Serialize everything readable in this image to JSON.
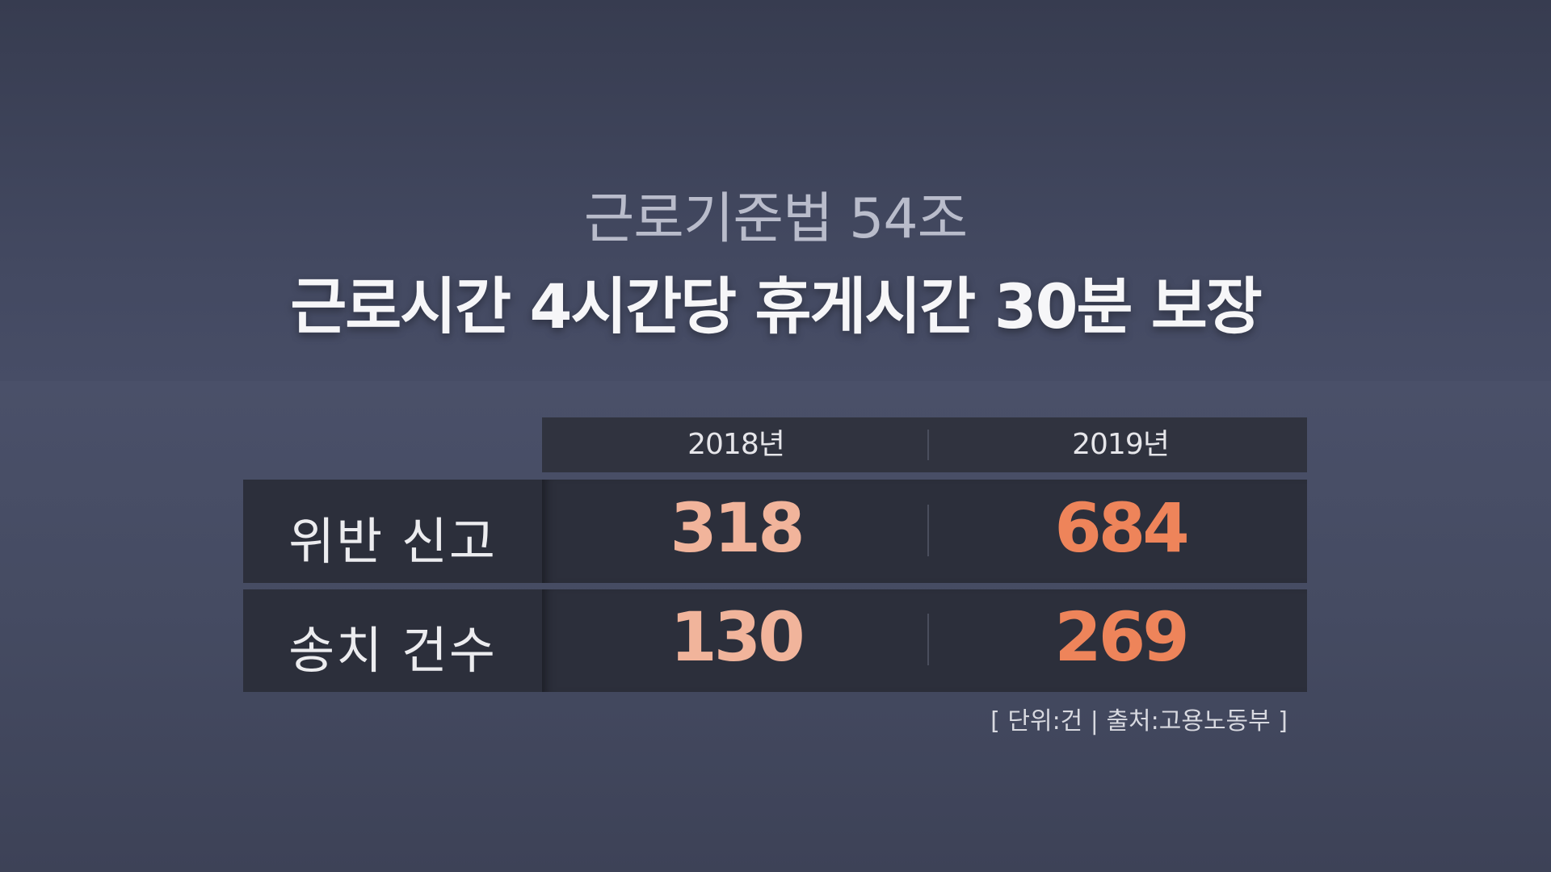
{
  "title": {
    "line1": "근로기준법 54조",
    "line2": "근로시간 4시간당 휴게시간 30분 보장"
  },
  "table": {
    "columns": [
      "2018년",
      "2019년"
    ],
    "rows": [
      {
        "label": "위반 신고",
        "values": [
          "318",
          "684"
        ]
      },
      {
        "label": "송치 건수",
        "values": [
          "130",
          "269"
        ]
      }
    ]
  },
  "footnote": "[ 단위:건 | 출처:고용노동부 ]",
  "colors": {
    "value_2018": "#f1b49b",
    "value_2019": "#ee845a",
    "cell_bg": "#2c2f3b"
  }
}
